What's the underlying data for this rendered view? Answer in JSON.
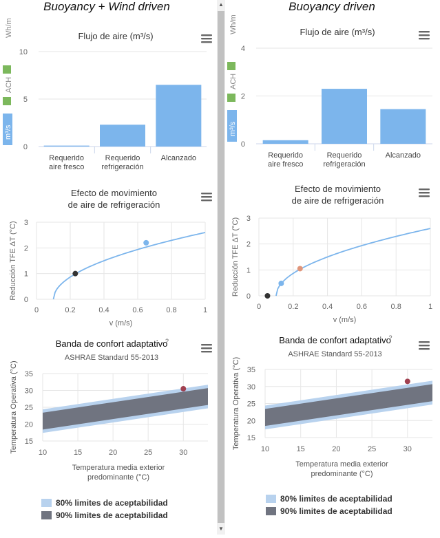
{
  "colors": {
    "bar": "#7cb5ec",
    "band80": "#b8d2ee",
    "band90": "#707480",
    "line": "#7cb5ec",
    "grid": "#e6e6e6"
  },
  "unit_buttons": {
    "wh": "Wh/m",
    "ach": "ACH",
    "m3s": "m³/s"
  },
  "menu_icon": "hamburger-icon",
  "legend": {
    "band80": "80% limites de aceptabilidad",
    "band90": "90% limites de aceptabilidad"
  },
  "panels": [
    {
      "title": "Buoyancy + Wind driven",
      "flow": {
        "title": "Flujo de aire (m³/s)",
        "categories": [
          [
            "Requerido",
            "aire fresco"
          ],
          [
            "Requerido",
            "refrigeración"
          ],
          [
            "Alcanzado"
          ]
        ],
        "values": [
          0.1,
          2.3,
          6.5
        ],
        "ylim": [
          0,
          10
        ],
        "ticks": [
          "0",
          "5",
          "10"
        ]
      },
      "effect": {
        "title": [
          "Efecto de movimiento",
          "de aire de refrigeración"
        ],
        "xlabel": "v (m/s)",
        "ylabel": "Reducción TFE ΔT (°C)",
        "xticks": [
          "0",
          "0.2",
          "0.4",
          "0.6",
          "0.8",
          "1"
        ],
        "yticks": [
          "0",
          "1",
          "2",
          "3"
        ],
        "points": [
          {
            "x": 0.23,
            "y": 1.0,
            "color": "#333333"
          },
          {
            "x": 0.65,
            "y": 2.2,
            "color": "#7cb5ec"
          }
        ]
      },
      "comfort": {
        "title": "Banda de confort adaptativo",
        "help": "?",
        "subtitle": "ASHRAE Standard 55-2013",
        "xlabel": [
          "Temperatura media exterior",
          "predominante (°C)"
        ],
        "ylabel": "Temperatura Operativa (°C)",
        "xticks": [
          "10",
          "15",
          "20",
          "25",
          "30"
        ],
        "yticks": [
          "15",
          "20",
          "25",
          "30",
          "35"
        ],
        "point": {
          "x": 30,
          "y": 30.5,
          "color": "#a04050"
        }
      }
    },
    {
      "title": "Buoyancy driven",
      "flow": {
        "title": "Flujo de aire (m³/s)",
        "categories": [
          [
            "Requerido",
            "aire fresco"
          ],
          [
            "Requerido",
            "refrigeración"
          ],
          [
            "Alcanzado"
          ]
        ],
        "values": [
          0.15,
          2.3,
          1.45
        ],
        "ylim": [
          0,
          4
        ],
        "ticks": [
          "0",
          "2",
          "4"
        ]
      },
      "effect": {
        "title": [
          "Efecto de movimiento",
          "de aire de refrigeración"
        ],
        "xlabel": "v (m/s)",
        "ylabel": "Reducción TFE ΔT (°C)",
        "xticks": [
          "0",
          "0.2",
          "0.4",
          "0.6",
          "0.8",
          "1"
        ],
        "yticks": [
          "0",
          "1",
          "2",
          "3"
        ],
        "points": [
          {
            "x": 0.05,
            "y": 0.0,
            "color": "#333333"
          },
          {
            "x": 0.13,
            "y": 0.48,
            "color": "#7cb5ec"
          },
          {
            "x": 0.24,
            "y": 1.05,
            "color": "#e0957a"
          }
        ]
      },
      "comfort": {
        "title": "Banda de confort adaptativo",
        "help": "?",
        "subtitle": "ASHRAE Standard 55-2013",
        "xlabel": [
          "Temperatura media exterior",
          "predominante (°C)"
        ],
        "ylabel": "Temperatura Operativa (°C)",
        "xticks": [
          "10",
          "15",
          "20",
          "25",
          "30"
        ],
        "yticks": [
          "15",
          "20",
          "25",
          "30",
          "35"
        ],
        "point": {
          "x": 30,
          "y": 31.5,
          "color": "#a04050"
        }
      }
    }
  ],
  "chart_data": [
    {
      "type": "bar",
      "title": "Flujo de aire (m³/s)",
      "panel": "Buoyancy + Wind driven",
      "categories": [
        "Requerido aire fresco",
        "Requerido refrigeración",
        "Alcanzado"
      ],
      "values": [
        0.1,
        2.3,
        6.5
      ],
      "ylim": [
        0,
        10
      ]
    },
    {
      "type": "line",
      "title": "Efecto de movimiento de aire de refrigeración",
      "panel": "Buoyancy + Wind driven",
      "xlabel": "v (m/s)",
      "ylabel": "Reducción TFE ΔT (°C)",
      "xlim": [
        0,
        1
      ],
      "ylim": [
        0,
        3
      ],
      "points": [
        [
          0.23,
          1.0
        ],
        [
          0.65,
          2.2
        ]
      ]
    },
    {
      "type": "area",
      "title": "Banda de confort adaptativo",
      "panel": "Buoyancy + Wind driven",
      "xlabel": "Temperatura media exterior predominante (°C)",
      "ylabel": "Temperatura Operativa (°C)",
      "xlim": [
        10,
        33.5
      ],
      "ylim": [
        15,
        35
      ],
      "point": [
        30,
        30.5
      ]
    },
    {
      "type": "bar",
      "title": "Flujo de aire (m³/s)",
      "panel": "Buoyancy driven",
      "categories": [
        "Requerido aire fresco",
        "Requerido refrigeración",
        "Alcanzado"
      ],
      "values": [
        0.15,
        2.3,
        1.45
      ],
      "ylim": [
        0,
        4
      ]
    },
    {
      "type": "line",
      "title": "Efecto de movimiento de aire de refrigeración",
      "panel": "Buoyancy driven",
      "xlabel": "v (m/s)",
      "ylabel": "Reducción TFE ΔT (°C)",
      "xlim": [
        0,
        1
      ],
      "ylim": [
        0,
        3
      ],
      "points": [
        [
          0.05,
          0.0
        ],
        [
          0.13,
          0.48
        ],
        [
          0.24,
          1.05
        ]
      ]
    },
    {
      "type": "area",
      "title": "Banda de confort adaptativo",
      "panel": "Buoyancy driven",
      "xlabel": "Temperatura media exterior predominante (°C)",
      "ylabel": "Temperatura Operativa (°C)",
      "xlim": [
        10,
        33.5
      ],
      "ylim": [
        15,
        35
      ],
      "point": [
        30,
        31.5
      ]
    }
  ]
}
